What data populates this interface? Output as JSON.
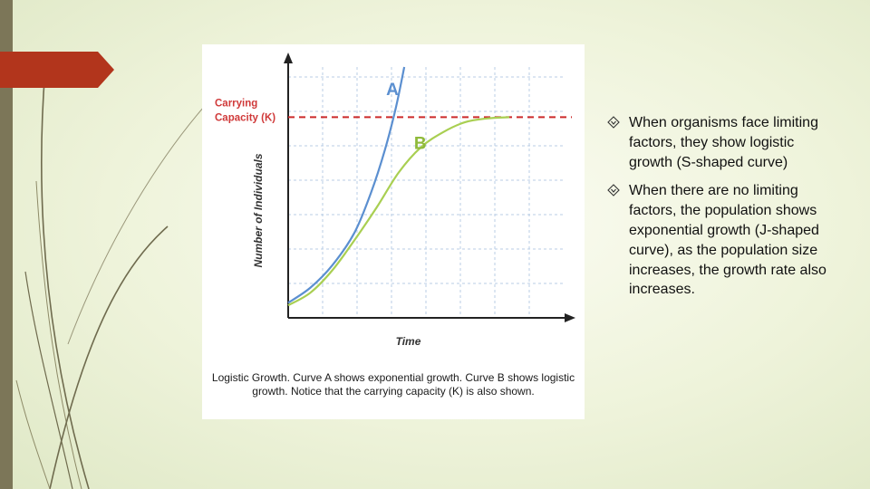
{
  "colors": {
    "curve_a": "#5b8fd0",
    "curve_b": "#a9cf52",
    "carrying_capacity": "#cc2a2a",
    "label_red": "#d03a3a",
    "label_a": "#5b8fd0",
    "label_b": "#8fba3a",
    "accent_tab": "#b2351c"
  },
  "figure": {
    "caption": "Logistic Growth. Curve A shows exponential growth. Curve B shows logistic growth. Notice that the carrying capacity (K) is also shown."
  },
  "chart_data": {
    "type": "line",
    "xlabel": "Time",
    "ylabel": "Number of Individuals",
    "grid": true,
    "ylim": [
      0,
      10
    ],
    "xlim": [
      0,
      10
    ],
    "carrying_capacity": {
      "label_line1": "Carrying",
      "label_line2": "Capacity (K)",
      "value": 8
    },
    "series": [
      {
        "name": "A",
        "x": [
          0,
          0.8,
          1.6,
          2.4,
          3.0,
          3.5,
          3.9,
          4.2
        ],
        "y": [
          0.6,
          1.2,
          2.1,
          3.4,
          5.0,
          6.7,
          8.4,
          10
        ]
      },
      {
        "name": "B",
        "x": [
          0,
          0.8,
          1.6,
          2.4,
          3.2,
          4.0,
          4.8,
          5.6,
          6.4,
          7.2,
          8.0
        ],
        "y": [
          0.5,
          1.0,
          1.9,
          3.1,
          4.4,
          5.8,
          6.8,
          7.4,
          7.8,
          7.95,
          8.0
        ]
      }
    ]
  },
  "bullets": [
    "When organisms face limiting factors, they show logistic growth (S-shaped curve)",
    "When there are no limiting factors, the population shows exponential growth (J-shaped curve), as the population size increases, the growth rate also increases."
  ]
}
